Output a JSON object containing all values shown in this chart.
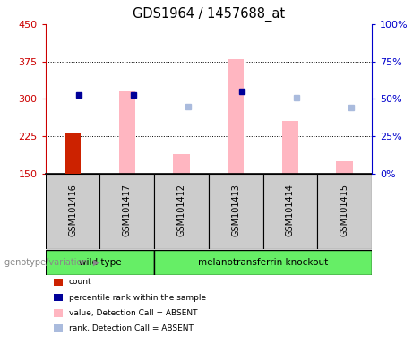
{
  "title": "GDS1964 / 1457688_at",
  "samples": [
    "GSM101416",
    "GSM101417",
    "GSM101412",
    "GSM101413",
    "GSM101414",
    "GSM101415"
  ],
  "ylim_left": [
    150,
    450
  ],
  "ylim_right": [
    0,
    100
  ],
  "yticks_left": [
    150,
    225,
    300,
    375,
    450
  ],
  "yticks_right": [
    0,
    25,
    50,
    75,
    100
  ],
  "baseline": 150,
  "red_bar": {
    "sample": "GSM101416",
    "value": 230
  },
  "pink_bars": {
    "GSM101417": 315,
    "GSM101412": 190,
    "GSM101413": 380,
    "GSM101414": 255,
    "GSM101415": 175
  },
  "blue_squares": {
    "GSM101416": 308,
    "GSM101417": 308,
    "GSM101413": 315
  },
  "light_blue_squares": {
    "GSM101412": 285,
    "GSM101414": 302,
    "GSM101415": 282
  },
  "wt_samples_idx": [
    0,
    1
  ],
  "ko_samples_idx": [
    2,
    3,
    4,
    5
  ],
  "wt_label": "wild type",
  "ko_label": "melanotransferrin knockout",
  "left_axis_color": "#CC0000",
  "right_axis_color": "#0000CC",
  "red_bar_color": "#CC2200",
  "pink_bar_color": "#FFB6C1",
  "blue_sq_color": "#000099",
  "light_blue_sq_color": "#AABBDD",
  "grid_color": "black",
  "bg_plot": "white",
  "bg_sample_area": "#CCCCCC",
  "bg_genotype_area": "#66EE66",
  "legend_labels": [
    "count",
    "percentile rank within the sample",
    "value, Detection Call = ABSENT",
    "rank, Detection Call = ABSENT"
  ]
}
